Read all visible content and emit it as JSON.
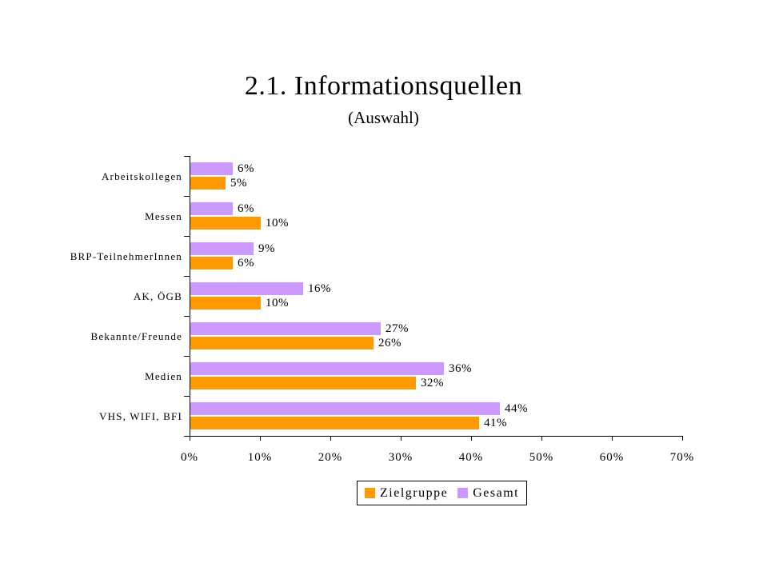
{
  "chart_data": {
    "type": "bar",
    "orientation": "horizontal",
    "title": "2.1. Informationsquellen",
    "subtitle": "(Auswahl)",
    "categories": [
      "Arbeitskollegen",
      "Messen",
      "BRP-TeilnehmerInnen",
      "AK, ÖGB",
      "Bekannte/Freunde",
      "Medien",
      "VHS, WIFI, BFI"
    ],
    "series": [
      {
        "name": "Gesamt",
        "color": "#CC99FF",
        "values": [
          6,
          6,
          9,
          16,
          27,
          36,
          44
        ]
      },
      {
        "name": "Zielgruppe",
        "color": "#FF9900",
        "values": [
          5,
          10,
          6,
          10,
          26,
          32,
          41
        ]
      }
    ],
    "xlim": [
      0,
      70
    ],
    "x_ticks": [
      "0%",
      "10%",
      "20%",
      "30%",
      "40%",
      "50%",
      "60%",
      "70%"
    ],
    "value_suffix": "%",
    "grid": false,
    "background_color": "#FFFFFF",
    "legend": {
      "position": "bottom",
      "items": [
        {
          "label": "Zielgruppe",
          "color": "#FF9900"
        },
        {
          "label": "Gesamt",
          "color": "#CC99FF"
        }
      ]
    }
  }
}
